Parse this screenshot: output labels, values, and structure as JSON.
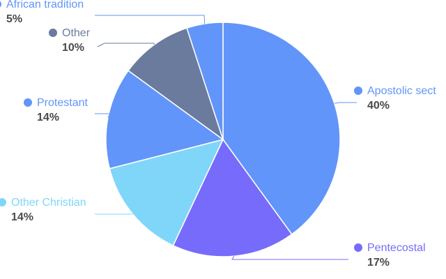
{
  "chart_data": {
    "type": "pie",
    "title": "",
    "slices": [
      {
        "name": "Apostolic sect",
        "value": 40,
        "label": "40%",
        "color": "#6195f9"
      },
      {
        "name": "Pentecostal",
        "value": 17,
        "label": "17%",
        "color": "#776bfb"
      },
      {
        "name": "Other Christian",
        "value": 14,
        "label": "14%",
        "color": "#80d6f8"
      },
      {
        "name": "Protestant",
        "value": 14,
        "label": "14%",
        "color": "#6195f9"
      },
      {
        "name": "Other",
        "value": 10,
        "label": "10%",
        "color": "#6b7b9e"
      },
      {
        "name": "African tradition",
        "value": 5,
        "label": "5%",
        "color": "#6195f9"
      }
    ],
    "legend": "none",
    "start_angle": "top, clockwise"
  }
}
